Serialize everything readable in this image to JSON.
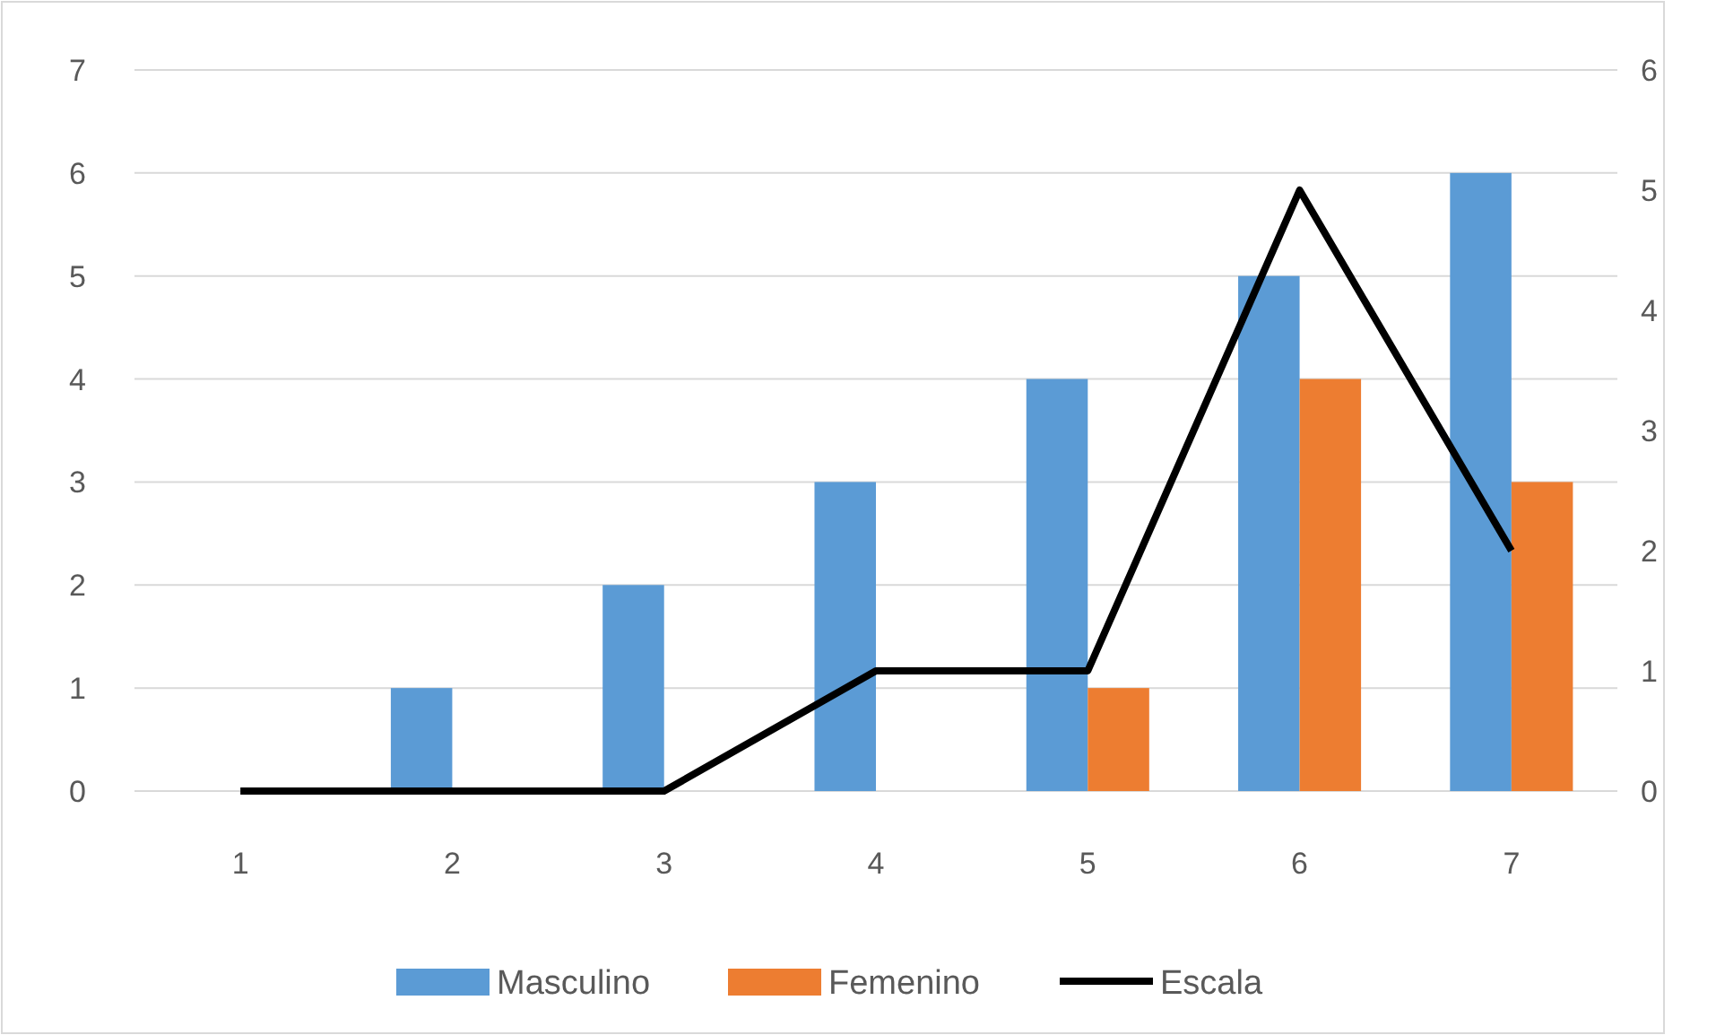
{
  "chart_data": {
    "type": "bar",
    "categories": [
      "1",
      "2",
      "3",
      "4",
      "5",
      "6",
      "7"
    ],
    "series": [
      {
        "name": "Masculino",
        "color": "#5b9bd5",
        "values": [
          0,
          1,
          2,
          3,
          4,
          5,
          6
        ]
      },
      {
        "name": "Femenino",
        "color": "#ed7d31",
        "values": [
          0,
          0,
          0,
          0,
          1,
          4,
          3
        ]
      },
      {
        "name": "Escala",
        "type": "line",
        "axis": "y2",
        "color": "#000000",
        "values": [
          0,
          0,
          0,
          1,
          1,
          5,
          2
        ]
      }
    ],
    "ylim": [
      0,
      7
    ],
    "yticks": [
      0,
      1,
      2,
      3,
      4,
      5,
      6,
      7
    ],
    "y2lim": [
      0,
      6
    ],
    "y2ticks": [
      0,
      1,
      2,
      3,
      4,
      5,
      6
    ],
    "grid": "y",
    "legend": "bottom",
    "marker": "none",
    "line_style": "solid"
  }
}
